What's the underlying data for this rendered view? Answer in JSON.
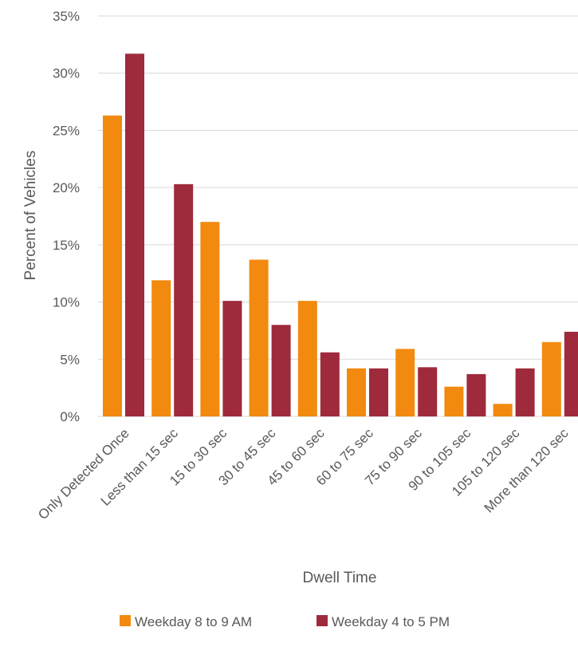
{
  "chart_data": {
    "type": "bar",
    "xlabel": "Dwell Time",
    "ylabel": "Percent of Vehicles",
    "ylim": [
      0,
      35
    ],
    "yticks": [
      0,
      5,
      10,
      15,
      20,
      25,
      30,
      35
    ],
    "ytick_labels": [
      "0%",
      "5%",
      "10%",
      "15%",
      "20%",
      "25%",
      "30%",
      "35%"
    ],
    "grid": true,
    "legend_position": "bottom",
    "categories": [
      "Only Detected Once",
      "Less than 15 sec",
      "15 to 30 sec",
      "30 to 45 sec",
      "45 to 60 sec",
      "60 to 75 sec",
      "75 to 90 sec",
      "90 to 105 sec",
      "105 to 120 sec",
      "More than 120 sec"
    ],
    "series": [
      {
        "name": "Weekday 8 to 9 AM",
        "color": "#F28A0F",
        "values": [
          26.3,
          11.9,
          17.0,
          13.7,
          10.1,
          4.2,
          5.9,
          2.6,
          1.1,
          6.5
        ]
      },
      {
        "name": "Weekday 4 to 5 PM",
        "color": "#9E2A3C",
        "values": [
          31.7,
          20.3,
          10.1,
          8.0,
          5.6,
          4.2,
          4.3,
          3.7,
          4.2,
          7.4
        ]
      }
    ]
  },
  "colors": {
    "gridline": "#D9D9D9",
    "text": "#595959"
  }
}
